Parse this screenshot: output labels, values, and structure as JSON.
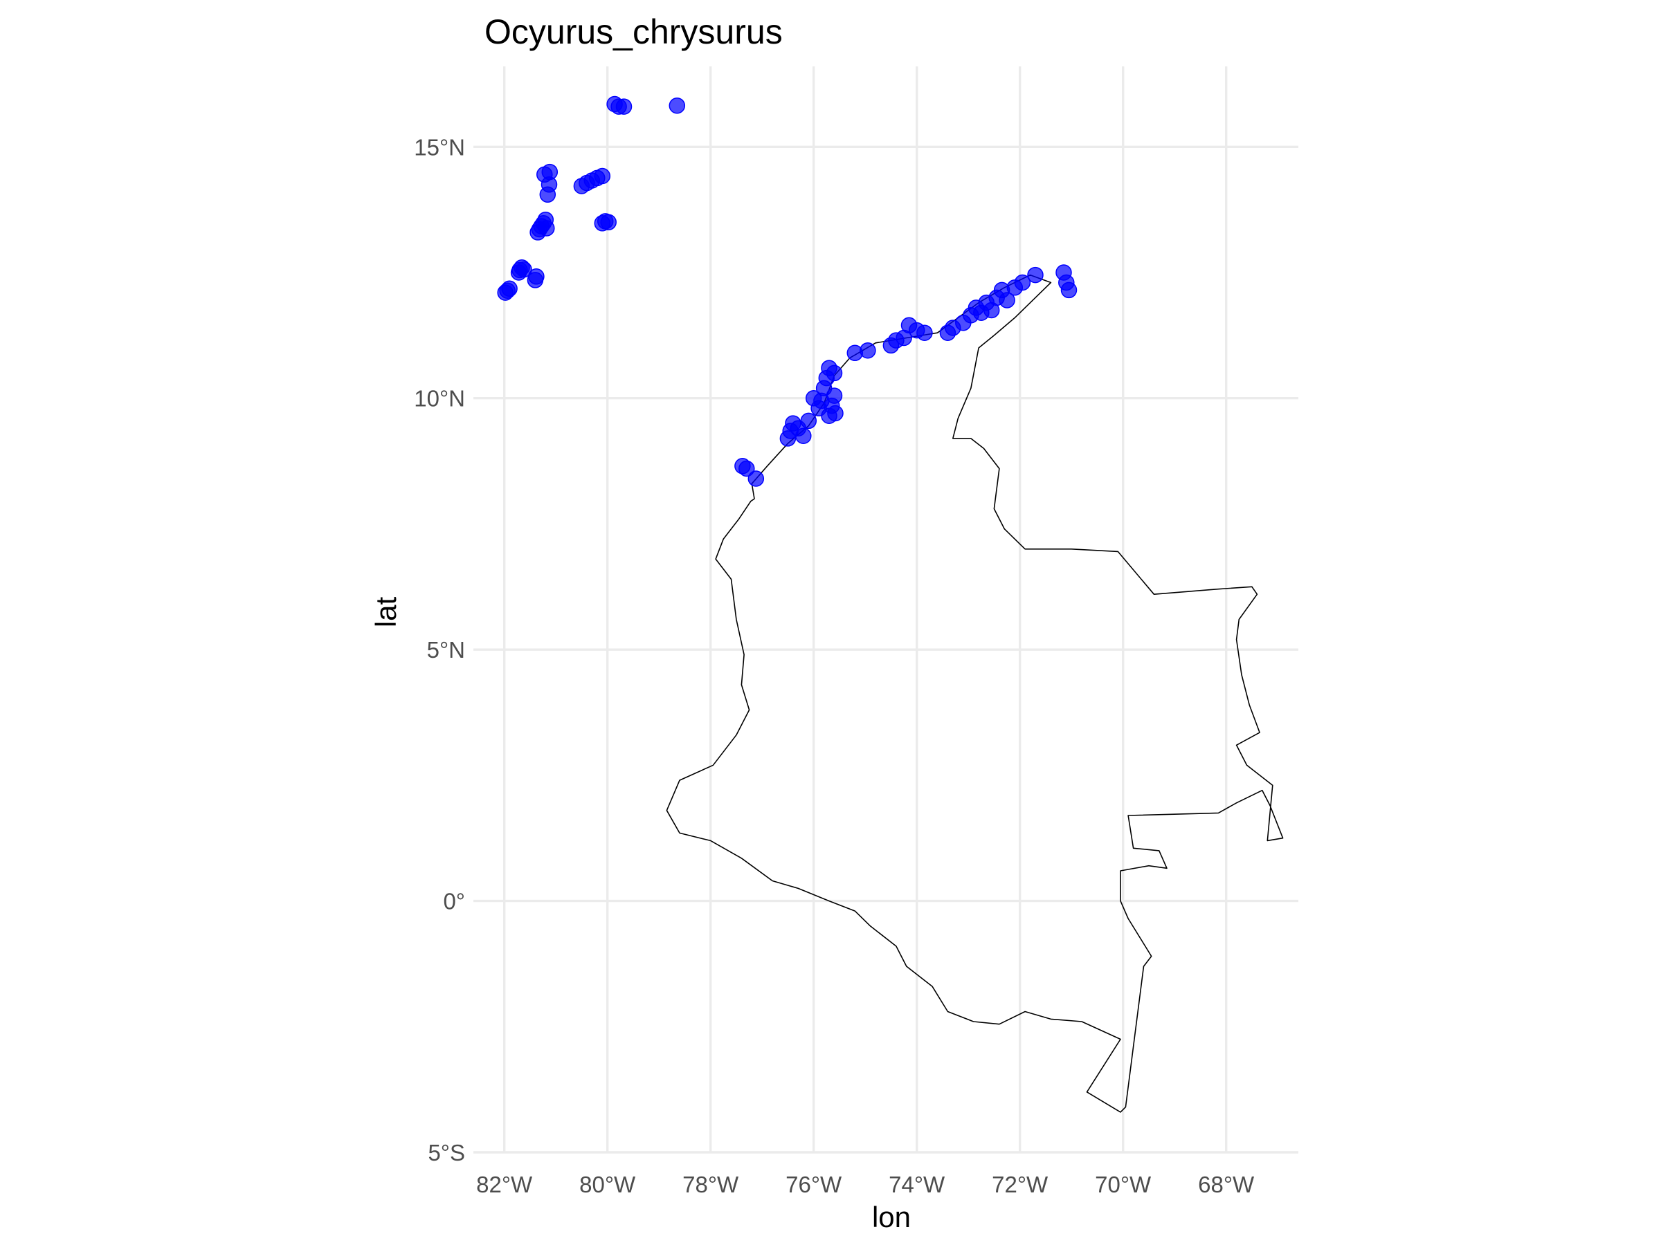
{
  "chart_data": {
    "type": "scatter",
    "title": "Ocyurus_chrysurus",
    "xlabel": "lon",
    "ylabel": "lat",
    "xlim": [
      -82.6,
      -66.6
    ],
    "ylim": [
      -5.0,
      16.6
    ],
    "grid": true,
    "legend": "none",
    "x_ticks": [
      {
        "value": -82,
        "label": "82°W"
      },
      {
        "value": -80,
        "label": "80°W"
      },
      {
        "value": -78,
        "label": "78°W"
      },
      {
        "value": -76,
        "label": "76°W"
      },
      {
        "value": -74,
        "label": "74°W"
      },
      {
        "value": -72,
        "label": "72°W"
      },
      {
        "value": -70,
        "label": "70°W"
      },
      {
        "value": -68,
        "label": "68°W"
      }
    ],
    "y_ticks": [
      {
        "value": 15,
        "label": "15°N"
      },
      {
        "value": 10,
        "label": "10°N"
      },
      {
        "value": 5,
        "label": "5°N"
      },
      {
        "value": 0,
        "label": "0°"
      },
      {
        "value": -5,
        "label": "5°S"
      }
    ],
    "point_color": "#0000ff",
    "outline_color": "#000000",
    "grid_color": "#ebebeb",
    "points": [
      [
        -81.98,
        12.1
      ],
      [
        -81.94,
        12.14
      ],
      [
        -81.9,
        12.18
      ],
      [
        -81.72,
        12.5
      ],
      [
        -81.7,
        12.55
      ],
      [
        -81.66,
        12.6
      ],
      [
        -81.62,
        12.56
      ],
      [
        -81.4,
        12.35
      ],
      [
        -81.38,
        12.42
      ],
      [
        -81.35,
        13.3
      ],
      [
        -81.32,
        13.36
      ],
      [
        -81.28,
        13.42
      ],
      [
        -81.24,
        13.48
      ],
      [
        -81.2,
        13.55
      ],
      [
        -81.18,
        13.38
      ],
      [
        -81.22,
        14.45
      ],
      [
        -81.12,
        14.5
      ],
      [
        -81.16,
        14.05
      ],
      [
        -81.13,
        14.25
      ],
      [
        -80.5,
        14.22
      ],
      [
        -80.4,
        14.28
      ],
      [
        -80.3,
        14.33
      ],
      [
        -80.2,
        14.38
      ],
      [
        -80.1,
        14.42
      ],
      [
        -80.1,
        13.48
      ],
      [
        -80.04,
        13.52
      ],
      [
        -79.98,
        13.5
      ],
      [
        -79.86,
        15.85
      ],
      [
        -79.78,
        15.8
      ],
      [
        -79.68,
        15.8
      ],
      [
        -78.65,
        15.82
      ],
      [
        -77.38,
        8.65
      ],
      [
        -77.3,
        8.6
      ],
      [
        -77.12,
        8.4
      ],
      [
        -76.5,
        9.2
      ],
      [
        -76.45,
        9.35
      ],
      [
        -76.4,
        9.5
      ],
      [
        -76.3,
        9.4
      ],
      [
        -76.2,
        9.25
      ],
      [
        -76.1,
        9.55
      ],
      [
        -76.0,
        10.0
      ],
      [
        -75.9,
        9.8
      ],
      [
        -75.85,
        9.95
      ],
      [
        -75.8,
        10.2
      ],
      [
        -75.75,
        10.4
      ],
      [
        -75.7,
        10.6
      ],
      [
        -75.7,
        9.65
      ],
      [
        -75.65,
        9.85
      ],
      [
        -75.6,
        10.05
      ],
      [
        -75.6,
        10.5
      ],
      [
        -75.58,
        9.7
      ],
      [
        -75.2,
        10.9
      ],
      [
        -74.95,
        10.95
      ],
      [
        -74.5,
        11.05
      ],
      [
        -74.4,
        11.15
      ],
      [
        -74.25,
        11.2
      ],
      [
        -74.15,
        11.45
      ],
      [
        -74.0,
        11.35
      ],
      [
        -73.85,
        11.3
      ],
      [
        -73.4,
        11.3
      ],
      [
        -73.3,
        11.4
      ],
      [
        -73.1,
        11.5
      ],
      [
        -72.95,
        11.65
      ],
      [
        -72.85,
        11.8
      ],
      [
        -72.75,
        11.7
      ],
      [
        -72.65,
        11.9
      ],
      [
        -72.55,
        11.75
      ],
      [
        -72.45,
        12.0
      ],
      [
        -72.35,
        12.15
      ],
      [
        -72.25,
        11.95
      ],
      [
        -72.1,
        12.2
      ],
      [
        -71.95,
        12.3
      ],
      [
        -71.7,
        12.45
      ],
      [
        -71.15,
        12.5
      ],
      [
        -71.1,
        12.3
      ],
      [
        -71.05,
        12.15
      ]
    ],
    "outline": [
      [
        -77.22,
        7.95
      ],
      [
        -77.45,
        7.6
      ],
      [
        -77.75,
        7.2
      ],
      [
        -77.9,
        6.8
      ],
      [
        -77.6,
        6.4
      ],
      [
        -77.5,
        5.6
      ],
      [
        -77.35,
        4.9
      ],
      [
        -77.4,
        4.3
      ],
      [
        -77.25,
        3.8
      ],
      [
        -77.5,
        3.3
      ],
      [
        -77.95,
        2.7
      ],
      [
        -78.6,
        2.4
      ],
      [
        -78.85,
        1.8
      ],
      [
        -78.6,
        1.35
      ],
      [
        -78.0,
        1.2
      ],
      [
        -77.4,
        0.85
      ],
      [
        -76.8,
        0.4
      ],
      [
        -76.3,
        0.25
      ],
      [
        -75.7,
        0.0
      ],
      [
        -75.2,
        -0.2
      ],
      [
        -74.9,
        -0.5
      ],
      [
        -74.4,
        -0.9
      ],
      [
        -74.2,
        -1.3
      ],
      [
        -73.7,
        -1.7
      ],
      [
        -73.4,
        -2.2
      ],
      [
        -72.9,
        -2.4
      ],
      [
        -72.4,
        -2.45
      ],
      [
        -71.9,
        -2.2
      ],
      [
        -71.4,
        -2.35
      ],
      [
        -70.8,
        -2.4
      ],
      [
        -70.05,
        -2.75
      ],
      [
        -70.7,
        -3.8
      ],
      [
        -70.05,
        -4.2
      ],
      [
        -69.95,
        -4.1
      ],
      [
        -69.6,
        -1.3
      ],
      [
        -69.45,
        -1.1
      ],
      [
        -69.9,
        -0.35
      ],
      [
        -70.05,
        0.0
      ],
      [
        -70.05,
        0.6
      ],
      [
        -69.5,
        0.7
      ],
      [
        -69.15,
        0.65
      ],
      [
        -69.3,
        1.0
      ],
      [
        -69.8,
        1.05
      ],
      [
        -69.9,
        1.7
      ],
      [
        -68.15,
        1.75
      ],
      [
        -67.8,
        1.95
      ],
      [
        -67.3,
        2.2
      ],
      [
        -67.15,
        1.9
      ],
      [
        -66.9,
        1.25
      ],
      [
        -67.2,
        1.2
      ],
      [
        -67.1,
        2.3
      ],
      [
        -67.6,
        2.7
      ],
      [
        -67.8,
        3.1
      ],
      [
        -67.35,
        3.35
      ],
      [
        -67.55,
        3.9
      ],
      [
        -67.7,
        4.5
      ],
      [
        -67.8,
        5.2
      ],
      [
        -67.75,
        5.6
      ],
      [
        -67.4,
        6.1
      ],
      [
        -67.5,
        6.25
      ],
      [
        -68.2,
        6.2
      ],
      [
        -69.4,
        6.1
      ],
      [
        -70.1,
        6.95
      ],
      [
        -71.0,
        7.0
      ],
      [
        -71.9,
        7.0
      ],
      [
        -72.3,
        7.4
      ],
      [
        -72.5,
        7.8
      ],
      [
        -72.4,
        8.6
      ],
      [
        -72.7,
        9.0
      ],
      [
        -72.95,
        9.2
      ],
      [
        -73.3,
        9.2
      ],
      [
        -73.2,
        9.6
      ],
      [
        -72.95,
        10.2
      ],
      [
        -72.8,
        11.0
      ],
      [
        -72.5,
        11.25
      ],
      [
        -72.1,
        11.6
      ],
      [
        -71.6,
        12.1
      ],
      [
        -71.4,
        12.3
      ],
      [
        -71.8,
        12.45
      ],
      [
        -72.3,
        12.2
      ],
      [
        -72.8,
        11.9
      ],
      [
        -73.6,
        11.3
      ],
      [
        -74.2,
        11.2
      ],
      [
        -74.8,
        11.1
      ],
      [
        -75.3,
        10.8
      ],
      [
        -75.6,
        10.45
      ],
      [
        -75.8,
        9.9
      ],
      [
        -76.1,
        9.45
      ],
      [
        -76.5,
        9.1
      ],
      [
        -76.9,
        8.65
      ],
      [
        -77.2,
        8.3
      ],
      [
        -77.15,
        8.0
      ],
      [
        -77.22,
        7.95
      ]
    ]
  }
}
